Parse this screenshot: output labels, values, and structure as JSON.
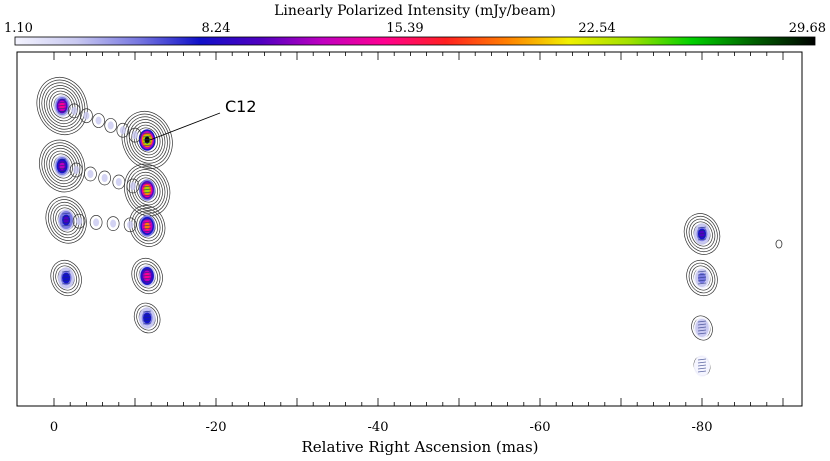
{
  "chart_data": {
    "type": "heatmap",
    "colorbar": {
      "title": "Linearly Polarized Intensity (mJy/beam)",
      "tick_labels": [
        "1.10",
        "8.24",
        "15.39",
        "22.54",
        "29.68"
      ],
      "range": [
        1.1,
        29.68
      ],
      "colors": [
        "#f4f4ff",
        "#c8c8f0",
        "#7878e0",
        "#1010c8",
        "#5000c0",
        "#c000c0",
        "#ff0090",
        "#ff2020",
        "#ff8000",
        "#f0f000",
        "#a0e000",
        "#00d000",
        "#006000",
        "#000000"
      ]
    },
    "xlabel": "Relative Right Ascension (mas)",
    "x_ticks": [
      "0",
      "-20",
      "-40",
      "-60",
      "-80"
    ],
    "xlim": [
      4,
      -93
    ],
    "annotation": "C12",
    "sources": [
      {
        "x": -1.0,
        "y": 300,
        "peak": 14,
        "contour_levels": 9
      },
      {
        "x": -11.5,
        "y": 266,
        "peak": 29.68,
        "contour_levels": 9
      },
      {
        "x": -1.0,
        "y": 240,
        "peak": 12,
        "contour_levels": 8
      },
      {
        "x": -11.5,
        "y": 216,
        "peak": 22,
        "contour_levels": 8
      },
      {
        "x": -1.5,
        "y": 186,
        "peak": 10,
        "contour_levels": 7
      },
      {
        "x": -11.5,
        "y": 180,
        "peak": 18,
        "contour_levels": 6
      },
      {
        "x": -1.5,
        "y": 128,
        "peak": 8,
        "contour_levels": 5
      },
      {
        "x": -11.5,
        "y": 130,
        "peak": 15,
        "contour_levels": 5
      },
      {
        "x": -11.5,
        "y": 88,
        "peak": 8,
        "contour_levels": 4
      },
      {
        "x": -80.0,
        "y": 172,
        "peak": 9,
        "contour_levels": 6
      },
      {
        "x": -80.0,
        "y": 128,
        "peak": 6,
        "contour_levels": 5
      },
      {
        "x": -80.0,
        "y": 78,
        "peak": 4,
        "contour_levels": 3
      },
      {
        "x": -80.0,
        "y": 40,
        "peak": 2,
        "contour_levels": 2
      }
    ]
  }
}
